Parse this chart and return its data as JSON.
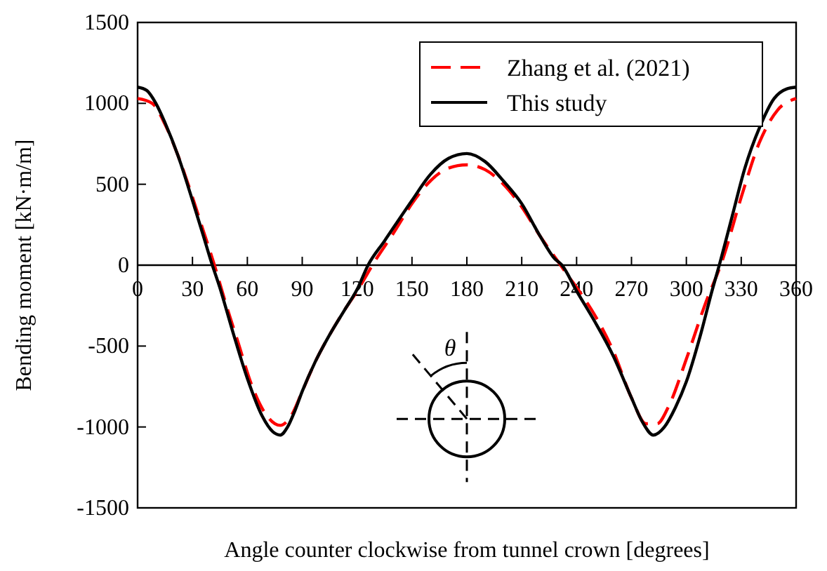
{
  "chart_data": {
    "type": "line",
    "xlabel": "Angle counter clockwise from tunnel crown [degrees]",
    "ylabel": "Bending moment [kN·m/m]",
    "xlim": [
      0,
      360
    ],
    "ylim": [
      -1500,
      1500
    ],
    "xticks": [
      0,
      30,
      60,
      90,
      120,
      150,
      180,
      210,
      240,
      270,
      300,
      330,
      360
    ],
    "yticks": [
      -1500,
      -1000,
      -500,
      0,
      500,
      1000,
      1500
    ],
    "legend": "top right",
    "grid": false,
    "annotations": [
      "θ"
    ],
    "series": [
      {
        "name": "Zhang et al. (2021)",
        "color": "#ff0000",
        "line_style": "dashed",
        "x": [
          0,
          8,
          15,
          22,
          30,
          36,
          42,
          48,
          55,
          62,
          70,
          78,
          84,
          90,
          97,
          105,
          113,
          120,
          130,
          140,
          150,
          160,
          170,
          180,
          190,
          200,
          210,
          220,
          230,
          235,
          242,
          250,
          260,
          270,
          278,
          284,
          290,
          300,
          310,
          320,
          330,
          340,
          350,
          360
        ],
        "values": [
          1030,
          1000,
          870,
          680,
          420,
          210,
          0,
          -230,
          -480,
          -730,
          -920,
          -990,
          -930,
          -780,
          -600,
          -430,
          -280,
          -160,
          30,
          200,
          380,
          520,
          600,
          620,
          590,
          500,
          360,
          180,
          20,
          -60,
          -170,
          -310,
          -530,
          -820,
          -980,
          -980,
          -880,
          -580,
          -250,
          40,
          420,
          760,
          960,
          1030
        ]
      },
      {
        "name": "This study",
        "color": "#000000",
        "line_style": "solid",
        "x": [
          0,
          5,
          10,
          15,
          22,
          30,
          36,
          40,
          45,
          52,
          60,
          68,
          74,
          78,
          82,
          86,
          90,
          97,
          105,
          113,
          120,
          126,
          135,
          150,
          160,
          170,
          180,
          190,
          200,
          210,
          220,
          228,
          232,
          240,
          250,
          260,
          270,
          276,
          282,
          288,
          294,
          300,
          308,
          314,
          318,
          325,
          332,
          340,
          348,
          355,
          360
        ],
        "values": [
          1100,
          1080,
          1000,
          880,
          680,
          400,
          180,
          30,
          -140,
          -410,
          -700,
          -930,
          -1030,
          -1050,
          -1000,
          -900,
          -780,
          -600,
          -430,
          -280,
          -150,
          0,
          150,
          400,
          560,
          660,
          690,
          640,
          520,
          380,
          180,
          40,
          0,
          -160,
          -350,
          -560,
          -820,
          -970,
          -1050,
          -1000,
          -880,
          -720,
          -420,
          -160,
          0,
          300,
          600,
          850,
          1030,
          1090,
          1100
        ]
      }
    ]
  }
}
